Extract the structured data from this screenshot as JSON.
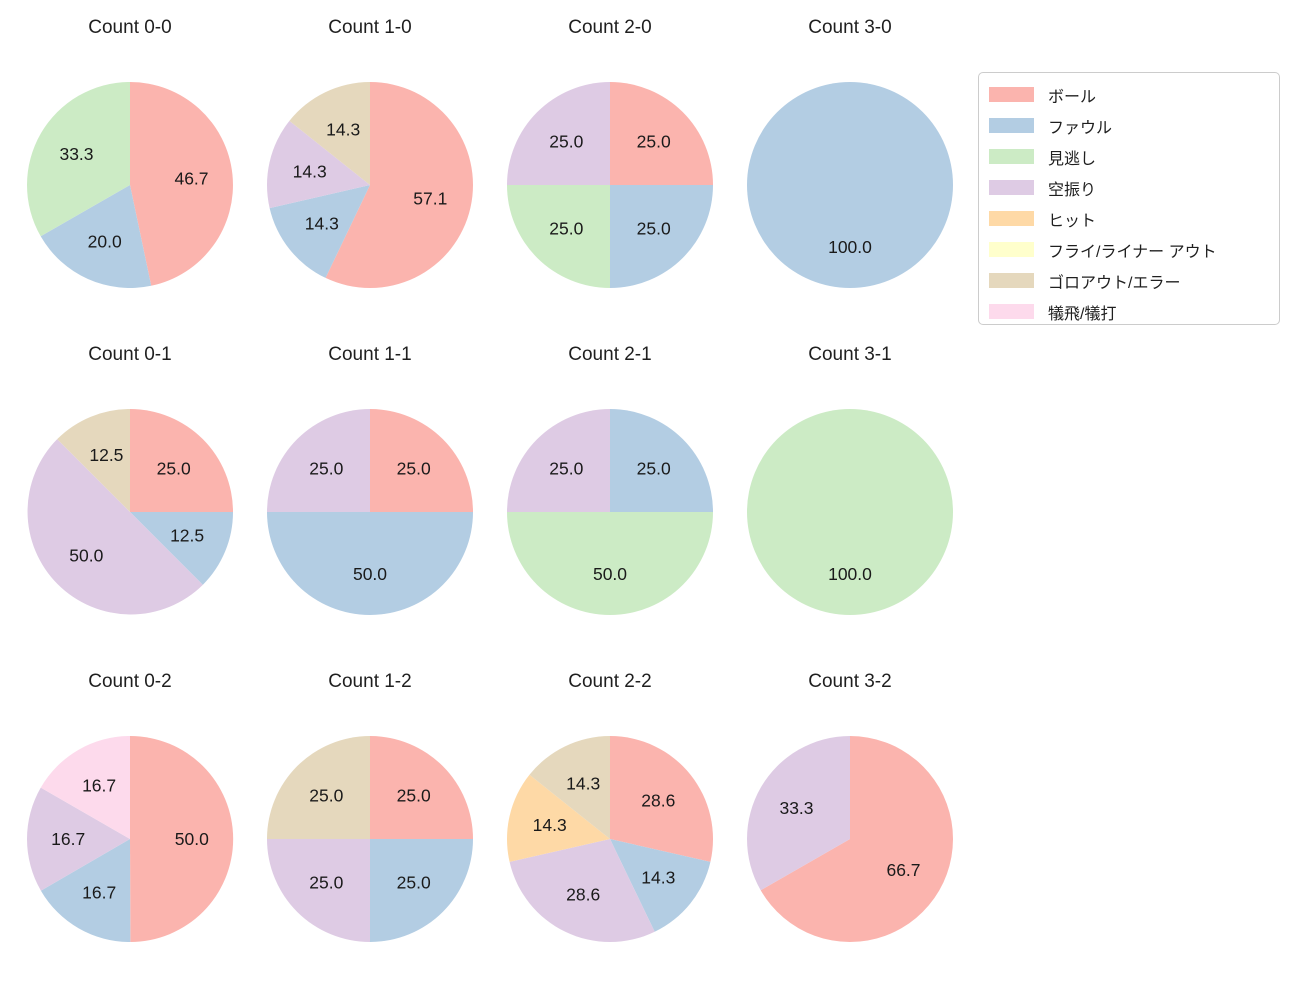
{
  "figure": {
    "background": "#ffffff",
    "text_color": "#1a1a1a",
    "grid": "3 rows x 4 columns of pie charts"
  },
  "legend": {
    "position": "top-right",
    "border_color": "#cccccc",
    "items": [
      {
        "label": "ボール",
        "color": "#fbb4ae"
      },
      {
        "label": "ファウル",
        "color": "#b3cde3"
      },
      {
        "label": "見逃し",
        "color": "#ccebc5"
      },
      {
        "label": "空振り",
        "color": "#decbe4"
      },
      {
        "label": "ヒット",
        "color": "#fed9a6"
      },
      {
        "label": "フライ/ライナー アウト",
        "color": "#ffffcc"
      },
      {
        "label": "ゴロアウト/エラー",
        "color": "#e5d8bd"
      },
      {
        "label": "犠飛/犠打",
        "color": "#fddaec"
      }
    ]
  },
  "chart_data": [
    {
      "type": "pie",
      "title": "Count 0-0",
      "start_angle": "top",
      "direction": "clockwise",
      "slices": [
        {
          "label": "ボール",
          "value": 46.7
        },
        {
          "label": "ファウル",
          "value": 20.0
        },
        {
          "label": "見逃し",
          "value": 33.3
        }
      ]
    },
    {
      "type": "pie",
      "title": "Count 1-0",
      "start_angle": "top",
      "direction": "clockwise",
      "slices": [
        {
          "label": "ボール",
          "value": 57.1
        },
        {
          "label": "ファウル",
          "value": 14.3
        },
        {
          "label": "空振り",
          "value": 14.3
        },
        {
          "label": "ゴロアウト/エラー",
          "value": 14.3
        }
      ]
    },
    {
      "type": "pie",
      "title": "Count 2-0",
      "start_angle": "top",
      "direction": "clockwise",
      "slices": [
        {
          "label": "ボール",
          "value": 25.0
        },
        {
          "label": "ファウル",
          "value": 25.0
        },
        {
          "label": "見逃し",
          "value": 25.0
        },
        {
          "label": "空振り",
          "value": 25.0
        }
      ]
    },
    {
      "type": "pie",
      "title": "Count 3-0",
      "start_angle": "top",
      "direction": "clockwise",
      "slices": [
        {
          "label": "ファウル",
          "value": 100.0
        }
      ]
    },
    {
      "type": "pie",
      "title": "Count 0-1",
      "start_angle": "top",
      "direction": "clockwise",
      "slices": [
        {
          "label": "ボール",
          "value": 25.0
        },
        {
          "label": "ファウル",
          "value": 12.5
        },
        {
          "label": "空振り",
          "value": 50.0
        },
        {
          "label": "ゴロアウト/エラー",
          "value": 12.5
        }
      ]
    },
    {
      "type": "pie",
      "title": "Count 1-1",
      "start_angle": "top",
      "direction": "clockwise",
      "slices": [
        {
          "label": "ボール",
          "value": 25.0
        },
        {
          "label": "ファウル",
          "value": 50.0
        },
        {
          "label": "空振り",
          "value": 25.0
        }
      ]
    },
    {
      "type": "pie",
      "title": "Count 2-1",
      "start_angle": "top",
      "direction": "clockwise",
      "slices": [
        {
          "label": "ファウル",
          "value": 25.0
        },
        {
          "label": "見逃し",
          "value": 50.0
        },
        {
          "label": "空振り",
          "value": 25.0
        }
      ]
    },
    {
      "type": "pie",
      "title": "Count 3-1",
      "start_angle": "top",
      "direction": "clockwise",
      "slices": [
        {
          "label": "見逃し",
          "value": 100.0
        }
      ]
    },
    {
      "type": "pie",
      "title": "Count 0-2",
      "start_angle": "top",
      "direction": "clockwise",
      "slices": [
        {
          "label": "ボール",
          "value": 50.0
        },
        {
          "label": "ファウル",
          "value": 16.7
        },
        {
          "label": "空振り",
          "value": 16.7
        },
        {
          "label": "犠飛/犠打",
          "value": 16.7
        }
      ]
    },
    {
      "type": "pie",
      "title": "Count 1-2",
      "start_angle": "top",
      "direction": "clockwise",
      "slices": [
        {
          "label": "ボール",
          "value": 25.0
        },
        {
          "label": "ファウル",
          "value": 25.0
        },
        {
          "label": "空振り",
          "value": 25.0
        },
        {
          "label": "ゴロアウト/エラー",
          "value": 25.0
        }
      ]
    },
    {
      "type": "pie",
      "title": "Count 2-2",
      "start_angle": "top",
      "direction": "clockwise",
      "slices": [
        {
          "label": "ボール",
          "value": 28.6
        },
        {
          "label": "ファウル",
          "value": 14.3
        },
        {
          "label": "空振り",
          "value": 28.6
        },
        {
          "label": "ヒット",
          "value": 14.3
        },
        {
          "label": "ゴロアウト/エラー",
          "value": 14.3
        }
      ]
    },
    {
      "type": "pie",
      "title": "Count 3-2",
      "start_angle": "top",
      "direction": "clockwise",
      "slices": [
        {
          "label": "ボール",
          "value": 66.7
        },
        {
          "label": "空振り",
          "value": 33.3
        }
      ]
    }
  ]
}
